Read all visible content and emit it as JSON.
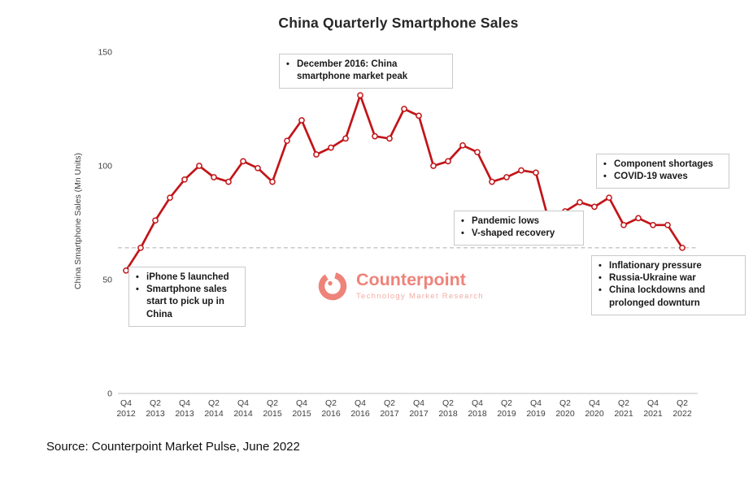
{
  "page": {
    "title": "China Quarterly Smartphone Sales",
    "source": "Source: Counterpoint Market Pulse, June 2022"
  },
  "watermark": {
    "name": "Counterpoint",
    "tagline": "Technology Market Research",
    "color": "#ee837a",
    "tagline_color": "#f3aca6"
  },
  "chart_data": {
    "type": "line",
    "title": "China Quarterly Smartphone Sales",
    "xlabel": "",
    "ylabel": "China Smartphone Sales (Mn Units)",
    "ylim": [
      0,
      150
    ],
    "yticks": [
      0,
      50,
      100,
      150
    ],
    "grid": false,
    "legend_position": "none",
    "line_color": "#c21418",
    "marker": "open-circle",
    "axis_color": "#bfbfbf",
    "tick_color": "#404040",
    "x_label_every": 2,
    "categories": [
      "Q4 2012",
      "Q1 2013",
      "Q2 2013",
      "Q3 2013",
      "Q4 2013",
      "Q1 2014",
      "Q2 2014",
      "Q3 2014",
      "Q4 2014",
      "Q1 2015",
      "Q2 2015",
      "Q3 2015",
      "Q4 2015",
      "Q1 2016",
      "Q2 2016",
      "Q3 2016",
      "Q4 2016",
      "Q1 2017",
      "Q2 2017",
      "Q3 2017",
      "Q4 2017",
      "Q1 2018",
      "Q2 2018",
      "Q3 2018",
      "Q4 2018",
      "Q1 2019",
      "Q2 2019",
      "Q3 2019",
      "Q4 2019",
      "Q1 2020",
      "Q2 2020",
      "Q3 2020",
      "Q4 2020",
      "Q1 2021",
      "Q2 2021",
      "Q3 2021",
      "Q4 2021",
      "Q1 2022",
      "Q2 2022"
    ],
    "series": [
      {
        "name": "China Smartphone Sales (Mn Units)",
        "values": [
          54,
          64,
          76,
          86,
          94,
          100,
          95,
          93,
          102,
          99,
          93,
          111,
          120,
          105,
          108,
          112,
          131,
          113,
          112,
          125,
          122,
          100,
          102,
          109,
          106,
          93,
          95,
          98,
          97,
          73,
          80,
          84,
          82,
          86,
          74,
          77,
          74,
          74,
          64
        ]
      }
    ],
    "reference_line": {
      "value": 64,
      "style": "dashed",
      "color": "#b8b8b8"
    },
    "annotations": [
      {
        "id": "market-peak",
        "bullets": [
          "December 2016: China smartphone market peak"
        ]
      },
      {
        "id": "iphone5-launch",
        "bullets": [
          "iPhone 5 launched",
          "Smartphone sales start to pick up in China"
        ]
      },
      {
        "id": "pandemic",
        "bullets": [
          "Pandemic lows",
          "V-shaped recovery"
        ]
      },
      {
        "id": "shortages",
        "bullets": [
          "Component shortages",
          "COVID-19 waves"
        ]
      },
      {
        "id": "downturn-2022",
        "bullets": [
          "Inflationary pressure",
          "Russia-Ukraine war",
          "China lockdowns and prolonged downturn"
        ]
      }
    ]
  }
}
